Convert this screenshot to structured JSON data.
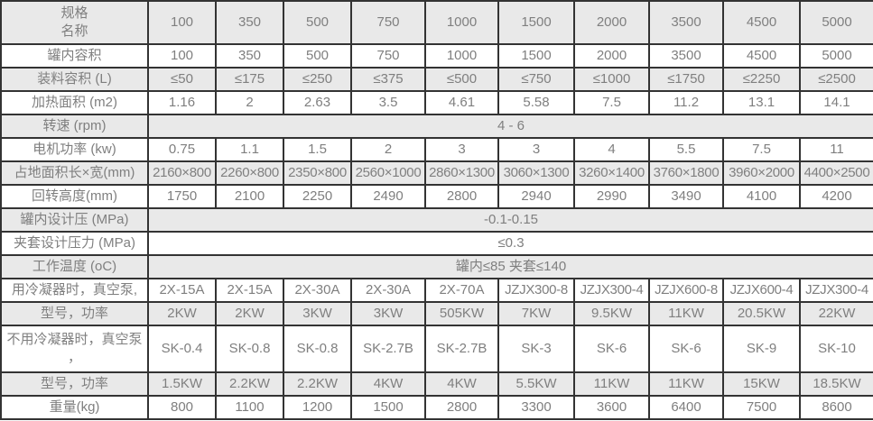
{
  "chart_data": {
    "type": "table",
    "colors": {
      "stripe": "#e9e9e9",
      "border": "#333333",
      "text": "#7f7f7f"
    },
    "header": {
      "label_lines": [
        "规格",
        "名称"
      ],
      "columns": [
        "100",
        "350",
        "500",
        "750",
        "1000",
        "1500",
        "2000",
        "3500",
        "4500",
        "5000"
      ]
    },
    "rows": [
      {
        "label": "罐内容积",
        "values": [
          "100",
          "350",
          "500",
          "750",
          "1000",
          "1500",
          "2000",
          "3500",
          "4500",
          "5000"
        ]
      },
      {
        "label": "装料容积 (L)",
        "values": [
          "≤50",
          "≤175",
          "≤250",
          "≤375",
          "≤500",
          "≤750",
          "≤1000",
          "≤1750",
          "≤2250",
          "≤2500"
        ]
      },
      {
        "label": "加热面积 (m2)",
        "values": [
          "1.16",
          "2",
          "2.63",
          "3.5",
          "4.61",
          "5.58",
          "7.5",
          "11.2",
          "13.1",
          "14.1"
        ]
      },
      {
        "label": "转速 (rpm)",
        "merged_value": "4 - 6"
      },
      {
        "label": "电机功率 (kw)",
        "values": [
          "0.75",
          "1.1",
          "1.5",
          "2",
          "3",
          "3",
          "4",
          "5.5",
          "7.5",
          "11"
        ]
      },
      {
        "label": "占地面积长×宽(mm)",
        "values": [
          "2160×800",
          "2260×800",
          "2350×800",
          "2560×1000",
          "2860×1300",
          "3060×1300",
          "3260×1400",
          "3760×1800",
          "3960×2000",
          "4400×2500"
        ]
      },
      {
        "label": "回转高度(mm)",
        "values": [
          "1750",
          "2100",
          "2250",
          "2490",
          "2800",
          "2940",
          "2990",
          "3490",
          "4100",
          "4200"
        ]
      },
      {
        "label": "罐内设计压 (MPa)",
        "merged_value": "-0.1-0.15"
      },
      {
        "label": "夹套设计压力 (MPa)",
        "merged_value": "≤0.3"
      },
      {
        "label": "工作温度 (oC)",
        "merged_value": "罐内≤85 夹套≤140"
      },
      {
        "label": "用冷凝器时，真空泵,",
        "values": [
          "2X-15A",
          "2X-15A",
          "2X-30A",
          "2X-30A",
          "2X-70A",
          "JZJX300-8",
          "JZJX300-4",
          "JZJX600-8",
          "JZJX600-4",
          "JZJX300-4"
        ]
      },
      {
        "label": "型号，功率",
        "values": [
          "2KW",
          "2KW",
          "3KW",
          "3KW",
          "505KW",
          "7KW",
          "9.5KW",
          "11KW",
          "20.5KW",
          "22KW"
        ]
      },
      {
        "label_lines": [
          "不用冷凝器时，真空泵",
          "，"
        ],
        "values": [
          "SK-0.4",
          "SK-0.8",
          "SK-0.8",
          "SK-2.7B",
          "SK-2.7B",
          "SK-3",
          "SK-6",
          "SK-6",
          "SK-9",
          "SK-10"
        ]
      },
      {
        "label": "型号，功率",
        "values": [
          "1.5KW",
          "2.2KW",
          "2.2KW",
          "4KW",
          "4KW",
          "5.5KW",
          "11KW",
          "11KW",
          "15KW",
          "18.5KW"
        ]
      },
      {
        "label": "重量(kg)",
        "values": [
          "800",
          "1100",
          "1200",
          "1500",
          "2800",
          "3300",
          "3600",
          "6400",
          "7500",
          "8600"
        ]
      }
    ]
  }
}
